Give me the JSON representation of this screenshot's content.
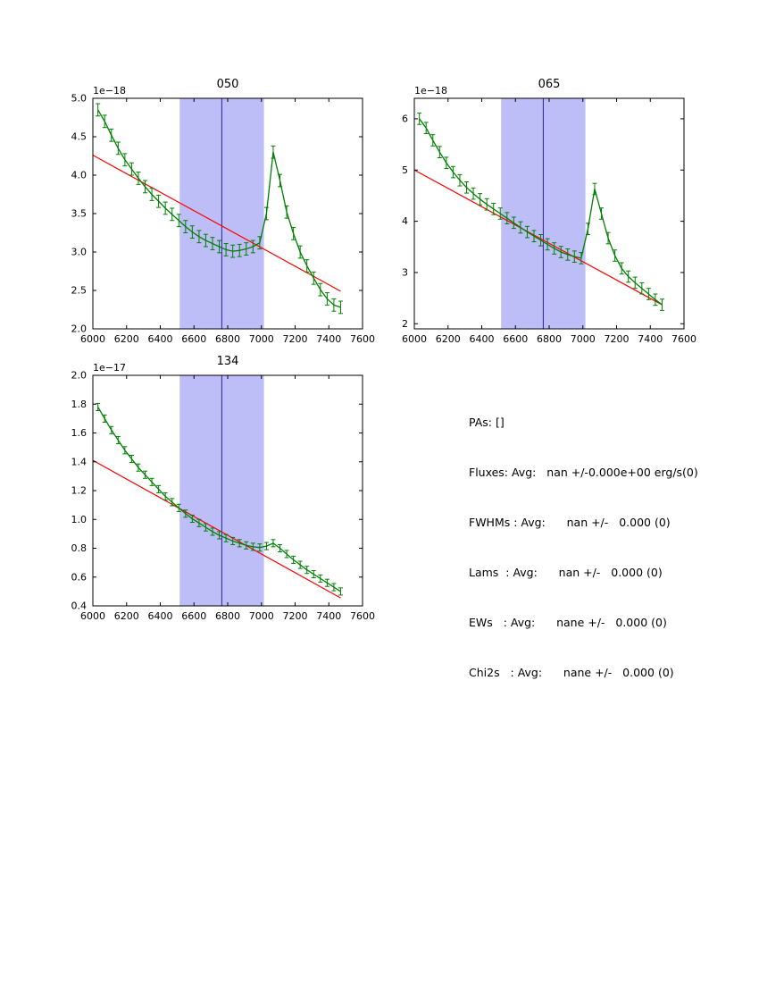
{
  "figure": {
    "background": "#ffffff",
    "axis_color": "#000000"
  },
  "stats": {
    "lines": [
      "PAs: []",
      "Fluxes: Avg:   nan +/-0.000e+00 erg/s(0)",
      "FWHMs : Avg:      nan +/-   0.000 (0)",
      "Lams  : Avg:      nan +/-   0.000 (0)",
      "EWs   : Avg:      nane +/-   0.000 (0)",
      "Chi2s   : Avg:      nane +/-   0.000 (0)"
    ]
  },
  "chart_data": [
    {
      "type": "line",
      "title": "050",
      "offset_label": "1e−18",
      "xlim": [
        6000,
        7600
      ],
      "ylim": [
        2.0,
        5.0
      ],
      "xticks": [
        6000,
        6200,
        6400,
        6600,
        6800,
        7000,
        7200,
        7400,
        7600
      ],
      "xtick_labels": [
        "6000",
        "6200",
        "6400",
        "6600",
        "6800",
        "7000",
        "7200",
        "7400",
        "7600"
      ],
      "yticks": [
        2.0,
        2.5,
        3.0,
        3.5,
        4.0,
        4.5,
        5.0
      ],
      "ytick_labels": [
        "2.0",
        "2.5",
        "3.0",
        "3.5",
        "4.0",
        "4.5",
        "5.0"
      ],
      "grid": false,
      "band": {
        "x0": 6515,
        "x1": 7015,
        "color": "#bdbdf7"
      },
      "vline": {
        "x": 6765,
        "color": "#2222aa"
      },
      "fit_line": {
        "x": [
          6000,
          7470
        ],
        "y": [
          4.26,
          2.49
        ],
        "color": "#ff0000"
      },
      "series": [
        {
          "name": "spectrum",
          "color": "#007f00",
          "yerr": 0.08,
          "x": [
            6030,
            6070,
            6110,
            6150,
            6190,
            6230,
            6270,
            6310,
            6350,
            6390,
            6430,
            6470,
            6510,
            6550,
            6590,
            6630,
            6670,
            6710,
            6750,
            6790,
            6830,
            6870,
            6910,
            6950,
            6990,
            7030,
            7070,
            7110,
            7150,
            7190,
            7230,
            7270,
            7310,
            7350,
            7390,
            7430,
            7470
          ],
          "y": [
            4.85,
            4.7,
            4.52,
            4.35,
            4.2,
            4.08,
            3.96,
            3.85,
            3.75,
            3.66,
            3.57,
            3.49,
            3.41,
            3.33,
            3.26,
            3.2,
            3.15,
            3.11,
            3.07,
            3.03,
            3.01,
            3.02,
            3.04,
            3.07,
            3.12,
            3.5,
            4.3,
            3.93,
            3.52,
            3.24,
            3.0,
            2.82,
            2.66,
            2.51,
            2.39,
            2.31,
            2.28
          ]
        }
      ]
    },
    {
      "type": "line",
      "title": "065",
      "offset_label": "1e−18",
      "xlim": [
        6000,
        7600
      ],
      "ylim": [
        1.9,
        6.4
      ],
      "xticks": [
        6000,
        6200,
        6400,
        6600,
        6800,
        7000,
        7200,
        7400,
        7600
      ],
      "xtick_labels": [
        "6000",
        "6200",
        "6400",
        "6600",
        "6800",
        "7000",
        "7200",
        "7400",
        "7600"
      ],
      "yticks": [
        2,
        3,
        4,
        5,
        6
      ],
      "ytick_labels": [
        "2",
        "3",
        "4",
        "5",
        "6"
      ],
      "grid": false,
      "band": {
        "x0": 6515,
        "x1": 7015,
        "color": "#bdbdf7"
      },
      "vline": {
        "x": 6765,
        "color": "#2222aa"
      },
      "fit_line": {
        "x": [
          6000,
          7470
        ],
        "y": [
          5.0,
          2.37
        ],
        "color": "#ff0000"
      },
      "series": [
        {
          "name": "spectrum",
          "color": "#007f00",
          "yerr": 0.11,
          "x": [
            6030,
            6070,
            6110,
            6150,
            6190,
            6230,
            6270,
            6310,
            6350,
            6390,
            6430,
            6470,
            6510,
            6550,
            6590,
            6630,
            6670,
            6710,
            6750,
            6790,
            6830,
            6870,
            6910,
            6950,
            6990,
            7030,
            7070,
            7110,
            7150,
            7190,
            7230,
            7270,
            7310,
            7350,
            7390,
            7430,
            7470
          ],
          "y": [
            6.0,
            5.82,
            5.58,
            5.35,
            5.14,
            4.96,
            4.8,
            4.66,
            4.54,
            4.43,
            4.33,
            4.24,
            4.15,
            4.06,
            3.97,
            3.88,
            3.79,
            3.71,
            3.63,
            3.55,
            3.47,
            3.4,
            3.35,
            3.31,
            3.28,
            3.85,
            4.63,
            4.15,
            3.67,
            3.33,
            3.08,
            2.92,
            2.8,
            2.69,
            2.58,
            2.47,
            2.37
          ]
        }
      ]
    },
    {
      "type": "line",
      "title": "134",
      "offset_label": "1e−17",
      "xlim": [
        6000,
        7600
      ],
      "ylim": [
        0.4,
        2.0
      ],
      "xticks": [
        6000,
        6200,
        6400,
        6600,
        6800,
        7000,
        7200,
        7400,
        7600
      ],
      "xtick_labels": [
        "6000",
        "6200",
        "6400",
        "6600",
        "6800",
        "7000",
        "7200",
        "7400",
        "7600"
      ],
      "yticks": [
        0.4,
        0.6,
        0.8,
        1.0,
        1.2,
        1.4,
        1.6,
        1.8,
        2.0
      ],
      "ytick_labels": [
        "0.4",
        "0.6",
        "0.8",
        "1.0",
        "1.2",
        "1.4",
        "1.6",
        "1.8",
        "2.0"
      ],
      "grid": false,
      "band": {
        "x0": 6515,
        "x1": 7015,
        "color": "#bdbdf7"
      },
      "vline": {
        "x": 6765,
        "color": "#2222aa"
      },
      "fit_line": {
        "x": [
          6000,
          7470
        ],
        "y": [
          1.41,
          0.455
        ],
        "color": "#ff0000"
      },
      "series": [
        {
          "name": "spectrum",
          "color": "#007f00",
          "yerr": 0.025,
          "x": [
            6030,
            6070,
            6110,
            6150,
            6190,
            6230,
            6270,
            6310,
            6350,
            6390,
            6430,
            6470,
            6510,
            6550,
            6590,
            6630,
            6670,
            6710,
            6750,
            6790,
            6830,
            6870,
            6910,
            6950,
            6990,
            7030,
            7070,
            7110,
            7150,
            7190,
            7230,
            7270,
            7310,
            7350,
            7390,
            7430,
            7470
          ],
          "y": [
            1.78,
            1.7,
            1.62,
            1.55,
            1.48,
            1.42,
            1.36,
            1.31,
            1.26,
            1.21,
            1.16,
            1.12,
            1.08,
            1.04,
            1.005,
            0.975,
            0.945,
            0.915,
            0.89,
            0.87,
            0.85,
            0.835,
            0.82,
            0.81,
            0.805,
            0.815,
            0.835,
            0.8,
            0.76,
            0.72,
            0.685,
            0.65,
            0.62,
            0.59,
            0.56,
            0.53,
            0.5
          ]
        }
      ]
    }
  ]
}
